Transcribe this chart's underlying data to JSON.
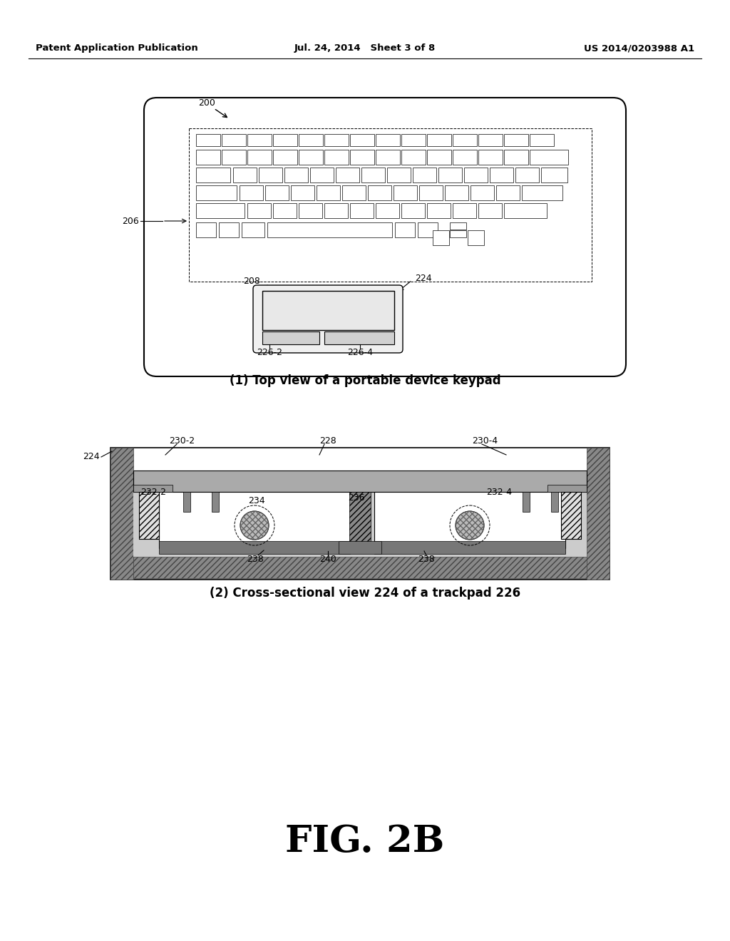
{
  "header_left": "Patent Application Publication",
  "header_center": "Jul. 24, 2014   Sheet 3 of 8",
  "header_right": "US 2014/0203988 A1",
  "fig_label": "FIG. 2B",
  "caption1": "(1) Top view of a portable device keypad",
  "caption2": "(2) Cross-sectional view 224 of a trackpad 226",
  "bg_color": "#ffffff"
}
